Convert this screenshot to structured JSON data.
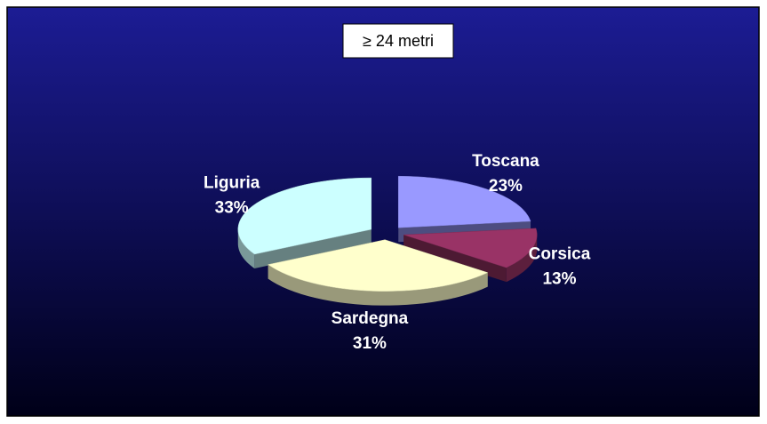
{
  "chart_data": {
    "type": "pie",
    "title": "≥ 24 metri",
    "categories": [
      "Toscana",
      "Corsica",
      "Sardegna",
      "Liguria"
    ],
    "values": [
      23,
      13,
      31,
      33
    ],
    "value_labels": [
      "23%",
      "13%",
      "31%",
      "33%"
    ],
    "colors": [
      "#9999ff",
      "#993366",
      "#ffffcc",
      "#ccffff"
    ]
  }
}
